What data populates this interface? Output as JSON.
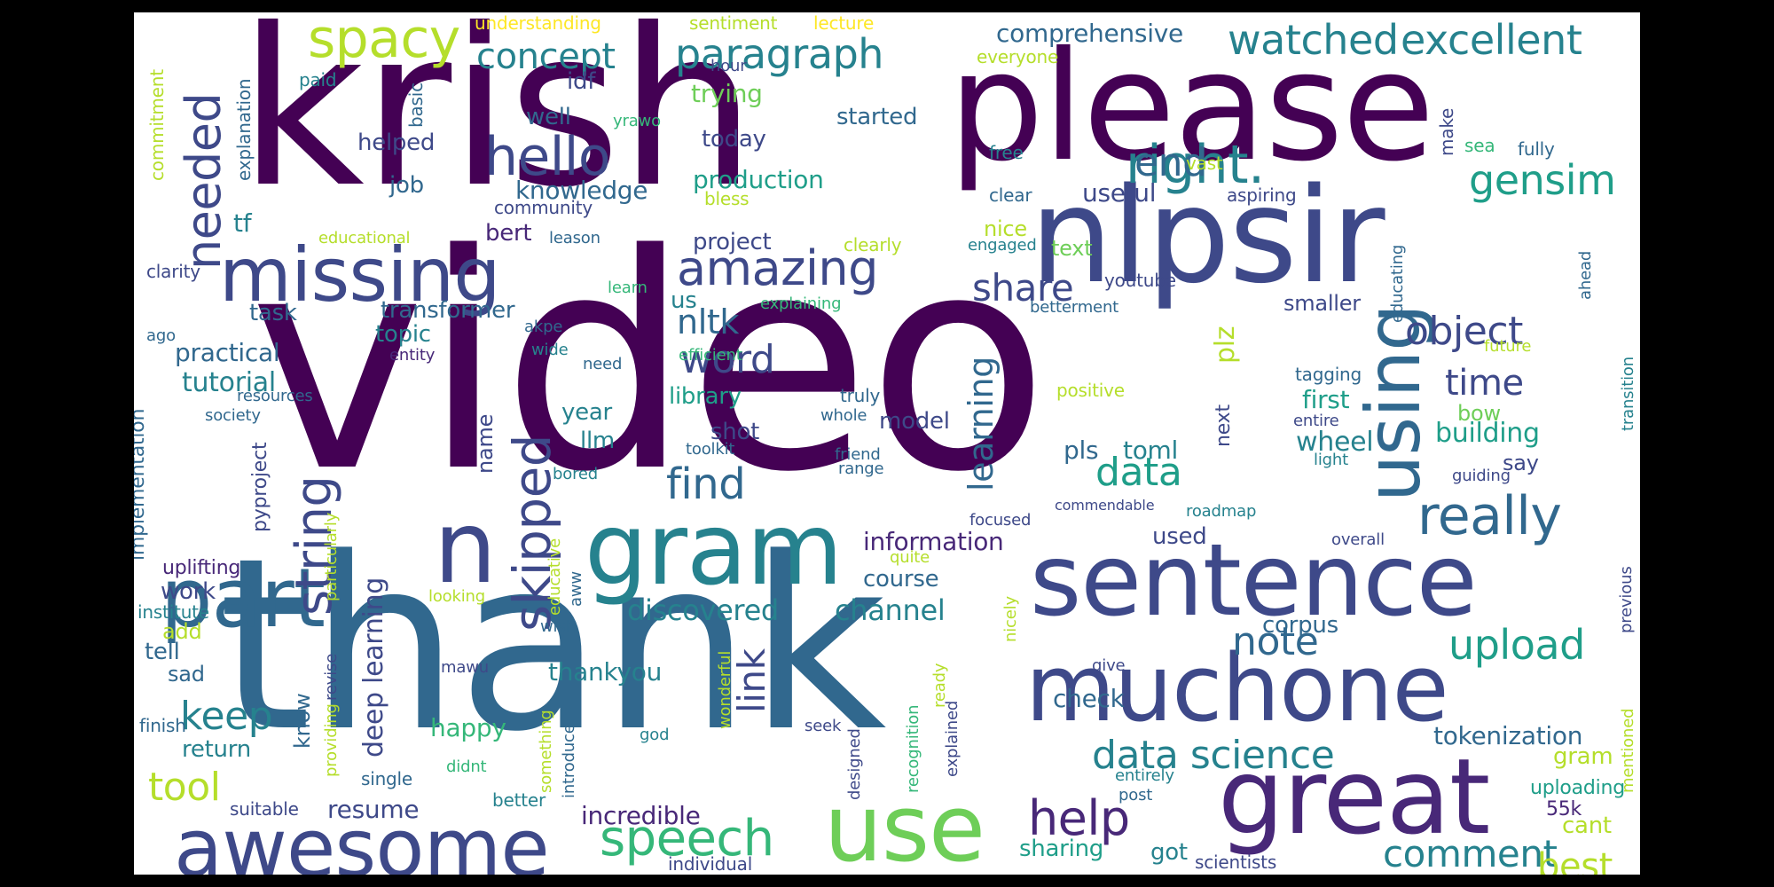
{
  "cloud": {
    "background": "#ffffff",
    "frame": "#000000",
    "palette": [
      "#440154",
      "#482878",
      "#3e4989",
      "#31688e",
      "#26828e",
      "#1f9e89",
      "#35b779",
      "#6ece58",
      "#b5de2b",
      "#fde725"
    ],
    "words": [
      {
        "t": "video",
        "c": "#440154"
      },
      {
        "t": "thank",
        "c": "#31688e"
      },
      {
        "t": "krish",
        "c": "#440154"
      },
      {
        "t": "please",
        "c": "#440154"
      },
      {
        "t": "nlpsir",
        "c": "#3e4989"
      },
      {
        "t": "gram",
        "c": "#26828e"
      },
      {
        "t": "n",
        "c": "#3e4989"
      },
      {
        "t": "sentence",
        "c": "#3e4989"
      },
      {
        "t": "muchone",
        "c": "#3e4989"
      },
      {
        "t": "great",
        "c": "#482878"
      },
      {
        "t": "use",
        "c": "#6ece58"
      },
      {
        "t": "awesome",
        "c": "#3e4989"
      },
      {
        "t": "missing",
        "c": "#3e4989"
      },
      {
        "t": "part",
        "c": "#31688e"
      },
      {
        "t": "using",
        "c": "#31688e"
      },
      {
        "t": "hello",
        "c": "#3e4989"
      },
      {
        "t": "spacy",
        "c": "#b5de2b"
      },
      {
        "t": "needed",
        "c": "#3e4989"
      },
      {
        "t": "string",
        "c": "#3e4989"
      },
      {
        "t": "skipped",
        "c": "#3e4989"
      },
      {
        "t": "amazing",
        "c": "#3e4989"
      },
      {
        "t": "right.",
        "c": "#26828e"
      },
      {
        "t": "watched",
        "c": "#26828e"
      },
      {
        "t": "excellent",
        "c": "#26828e"
      },
      {
        "t": "gensim",
        "c": "#1f9e89"
      },
      {
        "t": "concept",
        "c": "#26828e"
      },
      {
        "t": "paragraph",
        "c": "#26828e"
      },
      {
        "t": "really",
        "c": "#31688e"
      },
      {
        "t": "speech",
        "c": "#35b779"
      },
      {
        "t": "help",
        "c": "#482878"
      },
      {
        "t": "data science",
        "c": "#26828e"
      },
      {
        "t": "comment",
        "c": "#26828e"
      },
      {
        "t": "upload",
        "c": "#1f9e89"
      },
      {
        "t": "note",
        "c": "#31688e"
      },
      {
        "t": "find",
        "c": "#31688e"
      },
      {
        "t": "data",
        "c": "#1f9e89"
      },
      {
        "t": "object",
        "c": "#3e4989"
      },
      {
        "t": "time",
        "c": "#3e4989"
      },
      {
        "t": "word",
        "c": "#3e4989"
      },
      {
        "t": "link",
        "c": "#3e4989"
      },
      {
        "t": "learning",
        "c": "#31688e"
      },
      {
        "t": "share",
        "c": "#3e4989"
      },
      {
        "t": "end",
        "c": "#31688e"
      },
      {
        "t": "tool",
        "c": "#b5de2b"
      },
      {
        "t": "keep",
        "c": "#26828e"
      },
      {
        "t": "best",
        "c": "#b5de2b"
      },
      {
        "t": "discovered",
        "c": "#26828e"
      },
      {
        "t": "channel",
        "c": "#26828e"
      },
      {
        "t": "nltk",
        "c": "#31688e"
      },
      {
        "t": "deep learning",
        "c": "#3e4989"
      },
      {
        "t": "plz",
        "c": "#b5de2b"
      },
      {
        "t": "tutorial",
        "c": "#26828e"
      },
      {
        "t": "practical",
        "c": "#31688e"
      },
      {
        "t": "resume",
        "c": "#3e4989"
      },
      {
        "t": "incredible",
        "c": "#482878"
      },
      {
        "t": "information",
        "c": "#482878"
      },
      {
        "t": "tokenization",
        "c": "#31688e"
      },
      {
        "t": "building",
        "c": "#1f9e89"
      },
      {
        "t": "first",
        "c": "#1f9e89"
      },
      {
        "t": "wheel",
        "c": "#26828e"
      },
      {
        "t": "comprehensive",
        "c": "#31688e"
      },
      {
        "t": "production",
        "c": "#1f9e89"
      },
      {
        "t": "knowledge",
        "c": "#31688e"
      },
      {
        "t": "useful",
        "c": "#3e4989"
      },
      {
        "t": "trying",
        "c": "#6ece58"
      },
      {
        "t": "started",
        "c": "#31688e"
      },
      {
        "t": "today",
        "c": "#3e4989"
      },
      {
        "t": "helped",
        "c": "#3e4989"
      },
      {
        "t": "well",
        "c": "#31688e"
      },
      {
        "t": "idf",
        "c": "#3e4989"
      },
      {
        "t": "job",
        "c": "#31688e"
      },
      {
        "t": "tf",
        "c": "#26828e"
      },
      {
        "t": "bert",
        "c": "#482878"
      },
      {
        "t": "project",
        "c": "#3e4989"
      },
      {
        "t": "transformer",
        "c": "#31688e"
      },
      {
        "t": "task",
        "c": "#31688e"
      },
      {
        "t": "topic",
        "c": "#26828e"
      },
      {
        "t": "year",
        "c": "#26828e"
      },
      {
        "t": "llm",
        "c": "#26828e"
      },
      {
        "t": "library",
        "c": "#1f9e89"
      },
      {
        "t": "model",
        "c": "#3e4989"
      },
      {
        "t": "shot",
        "c": "#3e4989"
      },
      {
        "t": "course",
        "c": "#31688e"
      },
      {
        "t": "corpus",
        "c": "#31688e"
      },
      {
        "t": "check",
        "c": "#31688e"
      },
      {
        "t": "happy",
        "c": "#35b779"
      },
      {
        "t": "thankyou",
        "c": "#26828e"
      },
      {
        "t": "return",
        "c": "#26828e"
      },
      {
        "t": "tell",
        "c": "#31688e"
      },
      {
        "t": "add",
        "c": "#b5de2b"
      },
      {
        "t": "sad",
        "c": "#31688e"
      },
      {
        "t": "work",
        "c": "#3e4989"
      },
      {
        "t": "gram",
        "c": "#b5de2b"
      },
      {
        "t": "cant",
        "c": "#b5de2b"
      },
      {
        "t": "sharing",
        "c": "#1f9e89"
      },
      {
        "t": "got",
        "c": "#26828e"
      },
      {
        "t": "say",
        "c": "#3e4989"
      },
      {
        "t": "pls",
        "c": "#31688e"
      },
      {
        "t": "toml",
        "c": "#26828e"
      },
      {
        "t": "used",
        "c": "#3e4989"
      },
      {
        "t": "smaller",
        "c": "#3e4989"
      },
      {
        "t": "bow",
        "c": "#6ece58"
      },
      {
        "t": "nice",
        "c": "#b5de2b"
      },
      {
        "t": "text",
        "c": "#6ece58"
      },
      {
        "t": "us",
        "c": "#26828e"
      },
      {
        "t": "name",
        "c": "#3e4989"
      },
      {
        "t": "know",
        "c": "#31688e"
      },
      {
        "t": "implementation",
        "c": "#31688e"
      },
      {
        "t": "pyproject",
        "c": "#3e4989"
      },
      {
        "t": "next",
        "c": "#3e4989"
      },
      {
        "t": "uplifting",
        "c": "#482878"
      },
      {
        "t": "institute",
        "c": "#26828e"
      },
      {
        "t": "finish",
        "c": "#31688e"
      },
      {
        "t": "single",
        "c": "#31688e"
      },
      {
        "t": "suitable",
        "c": "#3e4989"
      },
      {
        "t": "better",
        "c": "#26828e"
      },
      {
        "t": "uploading",
        "c": "#1f9e89"
      },
      {
        "t": "55k",
        "c": "#482878"
      },
      {
        "t": "scientists",
        "c": "#3e4989"
      },
      {
        "t": "individual",
        "c": "#3e4989"
      },
      {
        "t": "understanding",
        "c": "#fde725"
      },
      {
        "t": "sentiment",
        "c": "#b5de2b"
      },
      {
        "t": "lecture",
        "c": "#fde725"
      },
      {
        "t": "everyone",
        "c": "#b5de2b"
      },
      {
        "t": "hour",
        "c": "#3e4989"
      },
      {
        "t": "yrawo",
        "c": "#35b779"
      },
      {
        "t": "paid",
        "c": "#26828e"
      },
      {
        "t": "basic",
        "c": "#31688e"
      },
      {
        "t": "commitment",
        "c": "#b5de2b"
      },
      {
        "t": "explanation",
        "c": "#31688e"
      },
      {
        "t": "free",
        "c": "#26828e"
      },
      {
        "t": "clear",
        "c": "#31688e"
      },
      {
        "t": "bless",
        "c": "#b5de2b"
      },
      {
        "t": "community",
        "c": "#3e4989"
      },
      {
        "t": "vast",
        "c": "#b5de2b"
      },
      {
        "t": "sea",
        "c": "#35b779"
      },
      {
        "t": "fully",
        "c": "#31688e"
      },
      {
        "t": "make",
        "c": "#3e4989"
      },
      {
        "t": "aspiring",
        "c": "#3e4989"
      },
      {
        "t": "educational",
        "c": "#b5de2b"
      },
      {
        "t": "leason",
        "c": "#31688e"
      },
      {
        "t": "clearly",
        "c": "#b5de2b"
      },
      {
        "t": "engaged",
        "c": "#26828e"
      },
      {
        "t": "clarity",
        "c": "#3e4989"
      },
      {
        "t": "learn",
        "c": "#35b779"
      },
      {
        "t": "youtube",
        "c": "#3e4989"
      },
      {
        "t": "explaining",
        "c": "#35b779"
      },
      {
        "t": "betterment",
        "c": "#31688e"
      },
      {
        "t": "educating",
        "c": "#31688e"
      },
      {
        "t": "ahead",
        "c": "#31688e"
      },
      {
        "t": "akpe",
        "c": "#31688e"
      },
      {
        "t": "wide",
        "c": "#26828e"
      },
      {
        "t": "ago",
        "c": "#31688e"
      },
      {
        "t": "entity",
        "c": "#482878"
      },
      {
        "t": "need",
        "c": "#31688e"
      },
      {
        "t": "efficient",
        "c": "#35b779"
      },
      {
        "t": "future",
        "c": "#b5de2b"
      },
      {
        "t": "transition",
        "c": "#26828e"
      },
      {
        "t": "tagging",
        "c": "#31688e"
      },
      {
        "t": "positive",
        "c": "#b5de2b"
      },
      {
        "t": "truly",
        "c": "#31688e"
      },
      {
        "t": "whole",
        "c": "#31688e"
      },
      {
        "t": "resources",
        "c": "#31688e"
      },
      {
        "t": "society",
        "c": "#31688e"
      },
      {
        "t": "entire",
        "c": "#3e4989"
      },
      {
        "t": "light",
        "c": "#26828e"
      },
      {
        "t": "toolkit",
        "c": "#31688e"
      },
      {
        "t": "friend",
        "c": "#31688e"
      },
      {
        "t": "range",
        "c": "#31688e"
      },
      {
        "t": "bored",
        "c": "#26828e"
      },
      {
        "t": "guiding",
        "c": "#3e4989"
      },
      {
        "t": "roadmap",
        "c": "#26828e"
      },
      {
        "t": "particularly",
        "c": "#b5de2b"
      },
      {
        "t": "focused",
        "c": "#3e4989"
      },
      {
        "t": "commendable",
        "c": "#3e4989"
      },
      {
        "t": "overall",
        "c": "#3e4989"
      },
      {
        "t": "previous",
        "c": "#3e4989"
      },
      {
        "t": "quite",
        "c": "#b5de2b"
      },
      {
        "t": "educative",
        "c": "#b5de2b"
      },
      {
        "t": "aww",
        "c": "#31688e"
      },
      {
        "t": "looking",
        "c": "#b5de2b"
      },
      {
        "t": "wish",
        "c": "#31688e"
      },
      {
        "t": "nicely",
        "c": "#b5de2b"
      },
      {
        "t": "mawu",
        "c": "#3e4989"
      },
      {
        "t": "ready",
        "c": "#b5de2b"
      },
      {
        "t": "give",
        "c": "#3e4989"
      },
      {
        "t": "wonderful",
        "c": "#b5de2b"
      },
      {
        "t": "revise",
        "c": "#3e4989"
      },
      {
        "t": "providing",
        "c": "#b5de2b"
      },
      {
        "t": "something",
        "c": "#b5de2b"
      },
      {
        "t": "introduce",
        "c": "#31688e"
      },
      {
        "t": "god",
        "c": "#26828e"
      },
      {
        "t": "seek",
        "c": "#3e4989"
      },
      {
        "t": "designed",
        "c": "#3e4989"
      },
      {
        "t": "recognition",
        "c": "#35b779"
      },
      {
        "t": "explained",
        "c": "#3e4989"
      },
      {
        "t": "didnt",
        "c": "#35b779"
      },
      {
        "t": "entirely",
        "c": "#26828e"
      },
      {
        "t": "post",
        "c": "#31688e"
      },
      {
        "t": "mentioned",
        "c": "#b5de2b"
      }
    ]
  }
}
